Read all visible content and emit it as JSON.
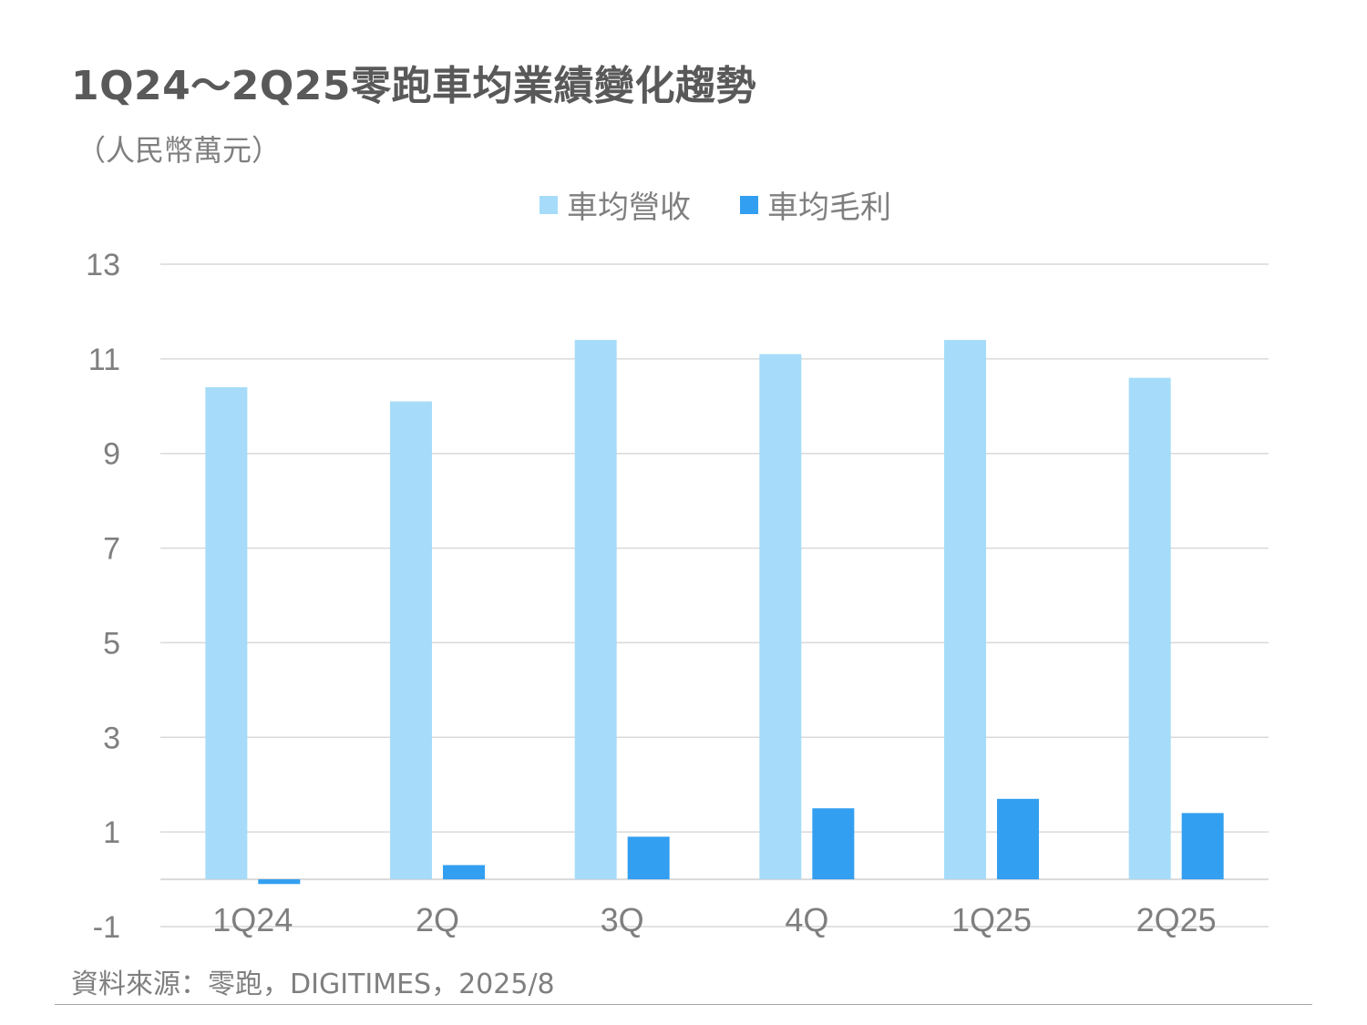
{
  "chart_data": {
    "type": "bar",
    "title": "1Q24～2Q25零跑車均業績變化趨勢",
    "subtitle": "（人民幣萬元）",
    "categories": [
      "1Q24",
      "2Q",
      "3Q",
      "4Q",
      "1Q25",
      "2Q25"
    ],
    "series": [
      {
        "name": "車均營收",
        "color": "#a6dcf9",
        "values": [
          10.4,
          10.1,
          11.4,
          11.1,
          11.4,
          10.6
        ]
      },
      {
        "name": "車均毛利",
        "color": "#339ff0",
        "values": [
          -0.1,
          0.3,
          0.9,
          1.5,
          1.7,
          1.4
        ]
      }
    ],
    "ylim": [
      -1,
      13
    ],
    "yticks": [
      "13",
      "11",
      "9",
      "7",
      "5",
      "3",
      "1",
      "-1"
    ],
    "ytick_values": [
      13,
      11,
      9,
      7,
      5,
      3,
      1,
      -1
    ],
    "grid": true,
    "legend_position": "top-center",
    "source": "資料來源：零跑，DIGITIMES，2025/8"
  }
}
